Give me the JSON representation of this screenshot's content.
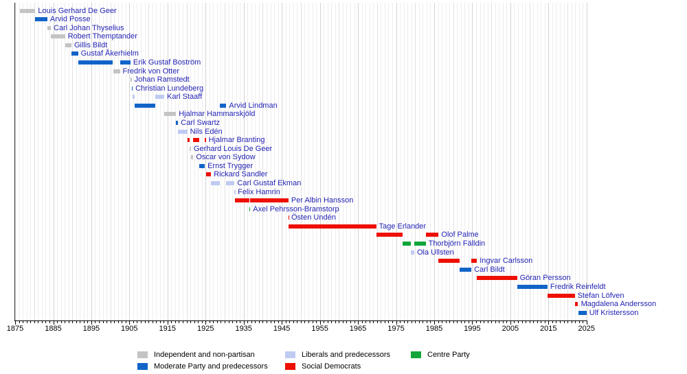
{
  "chart_data": {
    "type": "bar",
    "subtype": "horizontal-gantt-timeline",
    "title": "",
    "xlabel": "",
    "ylabel": "",
    "grid": "on",
    "x_axis": {
      "min": 1875,
      "max": 2025,
      "unit": "year",
      "minor_tick_step": 1,
      "major_tick_step": 10,
      "tick_labels": [
        1875,
        1885,
        1895,
        1905,
        1915,
        1925,
        1935,
        1945,
        1955,
        1965,
        1975,
        1985,
        1995,
        2005,
        2015,
        2025
      ]
    },
    "colors": {
      "name_link_color": "#2323b4",
      "axis_color": "#000000",
      "gridline_color": "#ededed",
      "background": "#ffffff"
    },
    "parties": {
      "independent": {
        "label": "Independent and non-partisan",
        "color": "#c4c4c4"
      },
      "moderate": {
        "label": "Moderate Party and predecessors",
        "color": "#1164c8"
      },
      "liberal": {
        "label": "Liberals and predecessors",
        "color": "#bfcbf2"
      },
      "social_democrat": {
        "label": "Social Democrats",
        "color": "#ee0f00"
      },
      "centre": {
        "label": "Centre Party",
        "color": "#10a53a"
      }
    },
    "legend": {
      "position": "bottom",
      "columns": [
        [
          "independent",
          "moderate"
        ],
        [
          "liberal",
          "social_democrat"
        ],
        [
          "centre"
        ]
      ]
    },
    "people": [
      {
        "name": "Louis Gerhard De Geer",
        "party": "independent",
        "terms": [
          [
            1876.22,
            1880.3
          ]
        ]
      },
      {
        "name": "Arvid Posse",
        "party": "moderate",
        "terms": [
          [
            1880.3,
            1883.45
          ]
        ]
      },
      {
        "name": "Carl Johan Thyselius",
        "party": "independent",
        "terms": [
          [
            1883.45,
            1884.37
          ]
        ]
      },
      {
        "name": "Robert Themptander",
        "party": "independent",
        "terms": [
          [
            1884.37,
            1888.1
          ]
        ]
      },
      {
        "name": "Gillis Bildt",
        "party": "independent",
        "terms": [
          [
            1888.1,
            1889.78
          ]
        ]
      },
      {
        "name": "Gustaf Åkerhielm",
        "party": "moderate",
        "terms": [
          [
            1889.78,
            1891.52
          ]
        ]
      },
      {
        "name": "Erik Gustaf Boström",
        "party": "moderate",
        "terms": [
          [
            1891.52,
            1900.7
          ],
          [
            1902.51,
            1905.28
          ]
        ]
      },
      {
        "name": "Fredrik von Otter",
        "party": "independent",
        "terms": [
          [
            1900.7,
            1902.51
          ]
        ]
      },
      {
        "name": "Johan Ramstedt",
        "party": "independent",
        "terms": [
          [
            1905.28,
            1905.58
          ]
        ]
      },
      {
        "name": "Christian Lundeberg",
        "party": "moderate",
        "terms": [
          [
            1905.58,
            1905.85
          ]
        ]
      },
      {
        "name": "Karl Staaff",
        "party": "liberal",
        "terms": [
          [
            1905.85,
            1906.41
          ],
          [
            1911.77,
            1914.13
          ]
        ]
      },
      {
        "name": "Arvid Lindman",
        "party": "moderate",
        "terms": [
          [
            1906.41,
            1911.77
          ],
          [
            1928.75,
            1930.43
          ]
        ]
      },
      {
        "name": "Hjalmar Hammarskjöld",
        "party": "independent",
        "terms": [
          [
            1914.13,
            1917.24
          ]
        ]
      },
      {
        "name": "Carl Swartz",
        "party": "moderate",
        "terms": [
          [
            1917.24,
            1917.8
          ]
        ]
      },
      {
        "name": "Nils Edén",
        "party": "liberal",
        "terms": [
          [
            1917.8,
            1920.19
          ]
        ]
      },
      {
        "name": "Hjalmar Branting",
        "party": "social_democrat",
        "terms": [
          [
            1920.19,
            1920.82
          ],
          [
            1921.78,
            1923.3
          ],
          [
            1924.8,
            1925.07
          ]
        ]
      },
      {
        "name": "Gerhard Louis De Geer",
        "party": "independent",
        "terms": [
          [
            1920.82,
            1921.15
          ]
        ]
      },
      {
        "name": "Oscar von Sydow",
        "party": "independent",
        "terms": [
          [
            1921.15,
            1921.78
          ]
        ]
      },
      {
        "name": "Ernst Trygger",
        "party": "moderate",
        "terms": [
          [
            1923.3,
            1924.8
          ]
        ]
      },
      {
        "name": "Rickard Sandler",
        "party": "social_democrat",
        "terms": [
          [
            1925.07,
            1926.43
          ]
        ]
      },
      {
        "name": "Carl Gustaf Ekman",
        "party": "liberal",
        "terms": [
          [
            1926.43,
            1928.75
          ],
          [
            1930.43,
            1932.6
          ]
        ]
      },
      {
        "name": "Felix Hamrin",
        "party": "liberal",
        "terms": [
          [
            1932.6,
            1932.73
          ]
        ]
      },
      {
        "name": "Per Albin Hansson",
        "party": "social_democrat",
        "terms": [
          [
            1932.73,
            1936.47
          ],
          [
            1936.74,
            1946.76
          ]
        ]
      },
      {
        "name": "Axel Pehrsson-Bramstorp",
        "party": "centre",
        "terms": [
          [
            1936.47,
            1936.74
          ]
        ]
      },
      {
        "name": "Östen Undén",
        "party": "social_democrat",
        "terms": [
          [
            1946.76,
            1946.78
          ]
        ]
      },
      {
        "name": "Tage Erlander",
        "party": "social_democrat",
        "terms": [
          [
            1946.78,
            1969.79
          ]
        ]
      },
      {
        "name": "Olof Palme",
        "party": "social_democrat",
        "terms": [
          [
            1969.79,
            1976.77
          ],
          [
            1982.77,
            1986.16
          ]
        ]
      },
      {
        "name": "Thorbjörn Fälldin",
        "party": "centre",
        "terms": [
          [
            1976.77,
            1978.8
          ],
          [
            1979.78,
            1982.77
          ]
        ]
      },
      {
        "name": "Ola Ullsten",
        "party": "liberal",
        "terms": [
          [
            1978.8,
            1979.78
          ]
        ]
      },
      {
        "name": "Ingvar Carlsson",
        "party": "social_democrat",
        "terms": [
          [
            1986.16,
            1991.76
          ],
          [
            1994.77,
            1996.22
          ]
        ]
      },
      {
        "name": "Carl Bildt",
        "party": "moderate",
        "terms": [
          [
            1991.76,
            1994.77
          ]
        ]
      },
      {
        "name": "Göran Persson",
        "party": "social_democrat",
        "terms": [
          [
            1996.22,
            2006.76
          ]
        ]
      },
      {
        "name": "Fredrik Reinfeldt",
        "party": "moderate",
        "terms": [
          [
            2006.76,
            2014.75
          ]
        ]
      },
      {
        "name": "Stefan Löfven",
        "party": "social_democrat",
        "terms": [
          [
            2014.75,
            2021.91
          ]
        ]
      },
      {
        "name": "Magdalena Andersson",
        "party": "social_democrat",
        "terms": [
          [
            2021.91,
            2022.8
          ]
        ]
      },
      {
        "name": "Ulf Kristersson",
        "party": "moderate",
        "terms": [
          [
            2022.8,
            2025.0
          ]
        ]
      }
    ]
  }
}
